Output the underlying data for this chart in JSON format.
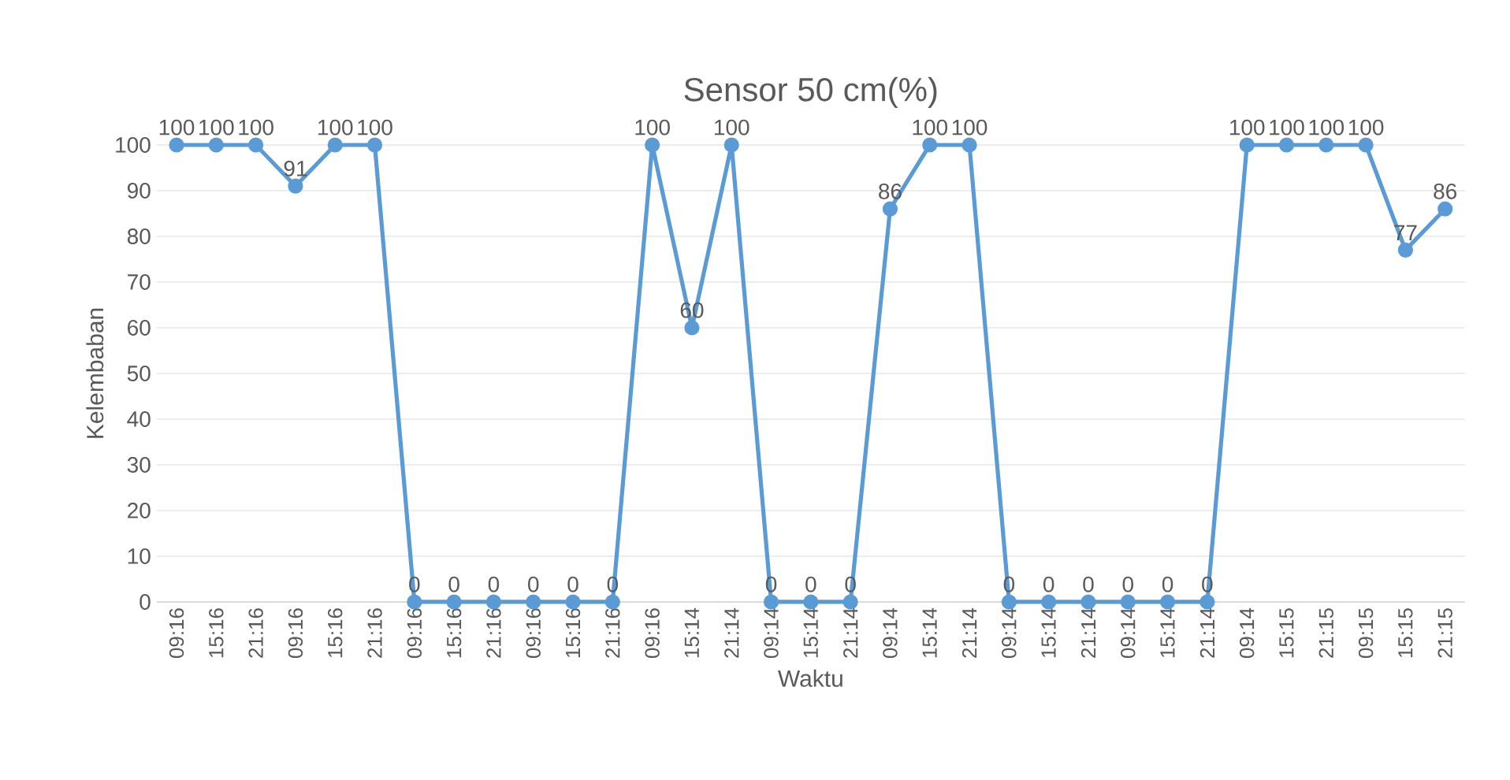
{
  "chart_data": {
    "type": "line",
    "title": "Sensor 50 cm(%)",
    "xlabel": "Waktu",
    "ylabel": "Kelembaban",
    "categories": [
      "09:16",
      "15:16",
      "21:16",
      "09:16",
      "15:16",
      "21:16",
      "09:16",
      "15:16",
      "21:16",
      "09:16",
      "15:16",
      "21:16",
      "09:16",
      "15:14",
      "21:14",
      "09:14",
      "15:14",
      "21:14",
      "09:14",
      "15:14",
      "21:14",
      "09:14",
      "15:14",
      "21:14",
      "09:14",
      "15:14",
      "21:14",
      "09:14",
      "15:15",
      "21:15",
      "09:15",
      "15:15",
      "21:15"
    ],
    "values": [
      100,
      100,
      100,
      91,
      100,
      100,
      0,
      0,
      0,
      0,
      0,
      0,
      100,
      60,
      100,
      0,
      0,
      0,
      86,
      100,
      100,
      0,
      0,
      0,
      0,
      0,
      0,
      100,
      100,
      100,
      100,
      77,
      86
    ],
    "color": "#5b9bd5",
    "ylim": [
      0,
      100
    ],
    "yticks": [
      0,
      10,
      20,
      30,
      40,
      50,
      60,
      70,
      80,
      90,
      100
    ],
    "grid": "y",
    "marker": "circle",
    "line_style": "solid",
    "data_labels": true
  }
}
